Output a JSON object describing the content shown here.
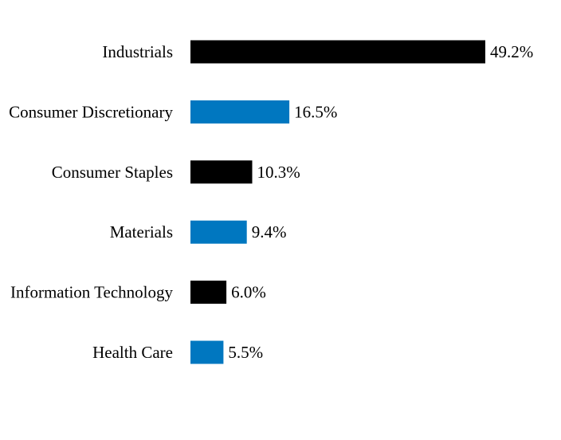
{
  "chart_data": {
    "type": "bar",
    "orientation": "horizontal",
    "categories": [
      "Industrials",
      "Consumer Discretionary",
      "Consumer Staples",
      "Materials",
      "Information Technology",
      "Health Care"
    ],
    "values": [
      49.2,
      16.5,
      10.3,
      9.4,
      6.0,
      5.5
    ],
    "value_labels": [
      "49.2%",
      "16.5%",
      "10.3%",
      "9.4%",
      "6.0%",
      "5.5%"
    ],
    "bar_colors": [
      "#000000",
      "#0077c0",
      "#000000",
      "#0077c0",
      "#000000",
      "#0077c0"
    ],
    "title": "",
    "xlabel": "",
    "ylabel": "",
    "xlim": [
      0,
      50
    ],
    "grid": false,
    "legend": "none"
  }
}
